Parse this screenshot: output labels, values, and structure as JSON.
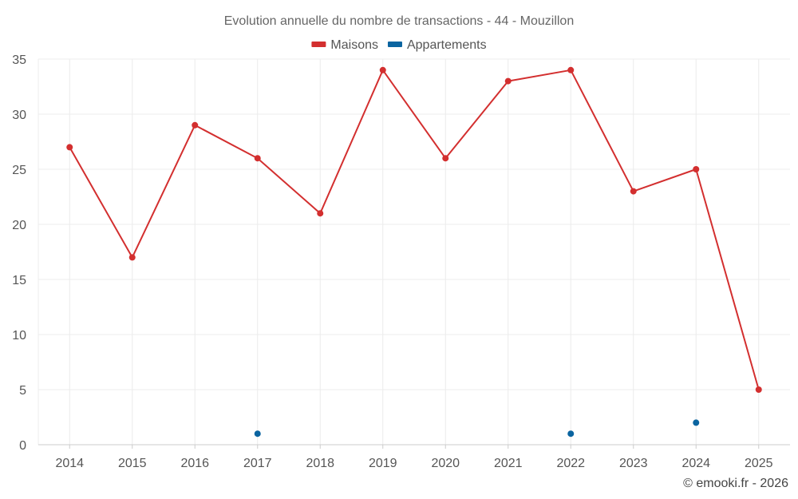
{
  "chart_data": {
    "type": "line",
    "title": "Evolution annuelle du nombre de transactions - 44 - Mouzillon",
    "categories": [
      "2014",
      "2015",
      "2016",
      "2017",
      "2018",
      "2019",
      "2020",
      "2021",
      "2022",
      "2023",
      "2024",
      "2025"
    ],
    "ylim": [
      0,
      35
    ],
    "yticks": [
      0,
      5,
      10,
      15,
      20,
      25,
      30,
      35
    ],
    "grid": true,
    "legend_position": "top-center",
    "series": [
      {
        "name": "Maisons",
        "color": "#d32f2f",
        "style": "line-markers",
        "values": [
          27,
          17,
          29,
          26,
          21,
          34,
          26,
          33,
          34,
          23,
          25,
          5
        ]
      },
      {
        "name": "Appartements",
        "color": "#0a64a0",
        "style": "markers",
        "values": [
          null,
          null,
          null,
          1,
          null,
          null,
          null,
          null,
          1,
          null,
          2,
          null
        ]
      }
    ]
  },
  "credit": "© emooki.fr - 2026"
}
